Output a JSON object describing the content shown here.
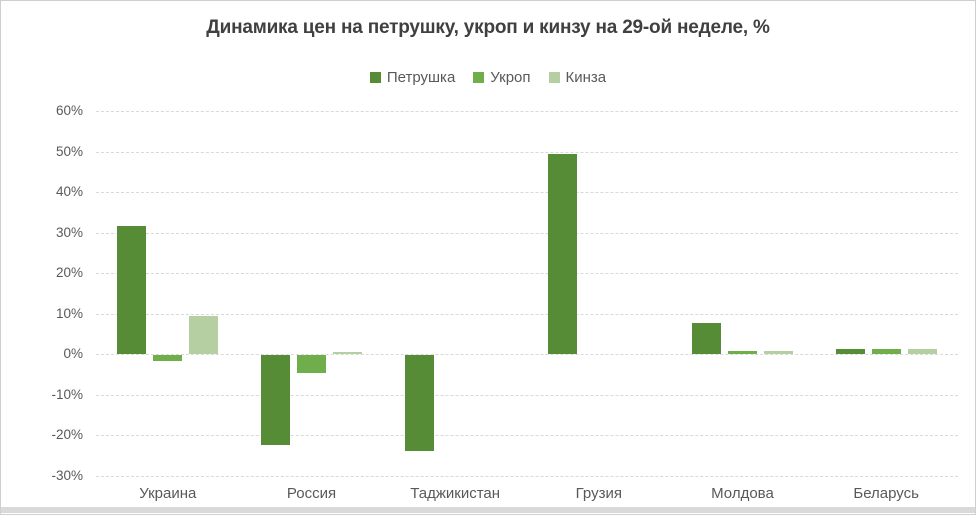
{
  "chart_data": {
    "type": "bar",
    "title": "Динамика цен на петрушку, укроп и кинзу на 29-ой неделе, %",
    "categories": [
      "Украина",
      "Россия",
      "Таджикистан",
      "Грузия",
      "Молдова",
      "Беларусь"
    ],
    "series": [
      {
        "name": "Петрушка",
        "color": "#578c37",
        "values": [
          31.7,
          -22.1,
          -23.6,
          49.5,
          7.8,
          1.3
        ]
      },
      {
        "name": "Укроп",
        "color": "#6fae4a",
        "values": [
          -1.5,
          -4.4,
          0,
          0,
          0.7,
          1.3
        ]
      },
      {
        "name": "Кинза",
        "color": "#b5cfa3",
        "values": [
          9.5,
          0.5,
          0,
          0,
          0.7,
          1.2
        ]
      }
    ],
    "ylim": [
      -30,
      60
    ],
    "ytick_step": 10,
    "ytick_labels": [
      "60%",
      "50%",
      "40%",
      "30%",
      "20%",
      "10%",
      "0%",
      "-10%",
      "-20%",
      "-30%"
    ],
    "xlabel": "",
    "ylabel": "",
    "grid": true,
    "gridline_style": "dashed",
    "legend_position": "top-center",
    "colors": {
      "grid": "#d9d9d9",
      "axis_text": "#595959",
      "title_text": "#404040",
      "frame_border": "#cfcfcf",
      "bottom_strip": "#d9d9d9",
      "background": "#ffffff"
    }
  }
}
